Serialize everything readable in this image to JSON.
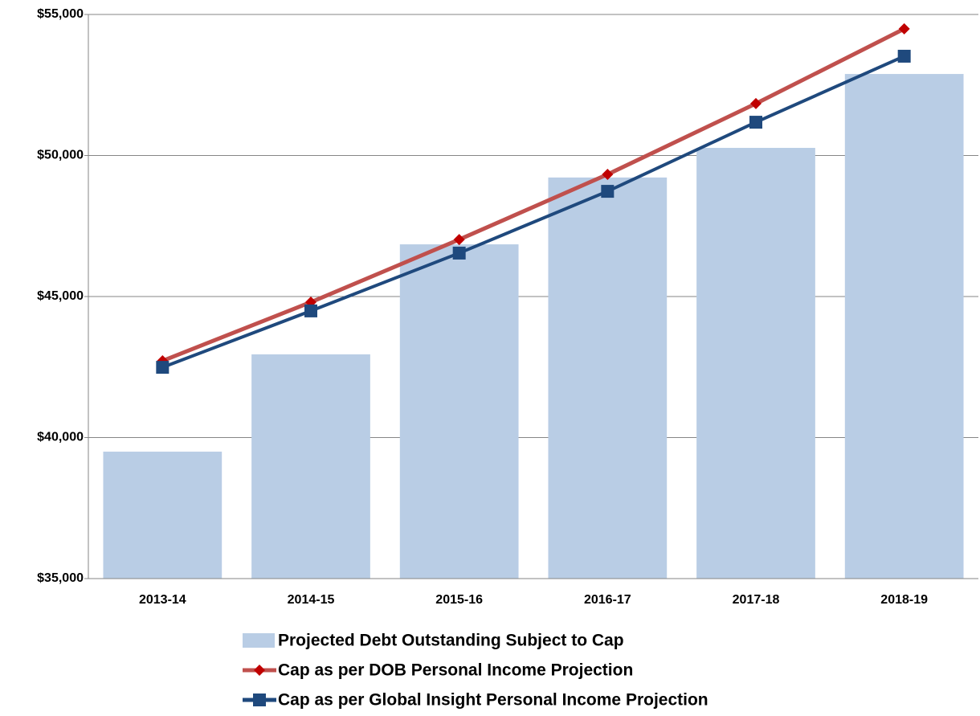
{
  "chart_data": {
    "type": "combo",
    "categories": [
      "2013-14",
      "2014-15",
      "2015-16",
      "2016-17",
      "2017-18",
      "2018-19"
    ],
    "series": [
      {
        "name": "Projected Debt Outstanding Subject to Cap",
        "type": "bar",
        "color": "#b9cde5",
        "values": [
          39500,
          42950,
          46850,
          49220,
          50270,
          52890
        ]
      },
      {
        "name": "Cap as per DOB Personal Income Projection",
        "type": "line",
        "marker": "diamond",
        "color": "#c0504d",
        "marker_color": "#c00000",
        "values": [
          42720,
          44800,
          47020,
          49330,
          51840,
          54490
        ]
      },
      {
        "name": "Cap as per Global Insight Personal Income Projection",
        "type": "line",
        "marker": "square",
        "color": "#1f497d",
        "values": [
          42490,
          44490,
          46540,
          48730,
          51180,
          53520
        ]
      }
    ],
    "ylim": [
      35000,
      55000
    ],
    "yticks": [
      {
        "value": 35000,
        "label": "$35,000"
      },
      {
        "value": 40000,
        "label": "$40,000"
      },
      {
        "value": 45000,
        "label": "$45,000"
      },
      {
        "value": 50000,
        "label": "$50,000"
      },
      {
        "value": 55000,
        "label": "$55,000"
      }
    ],
    "grid": true
  }
}
